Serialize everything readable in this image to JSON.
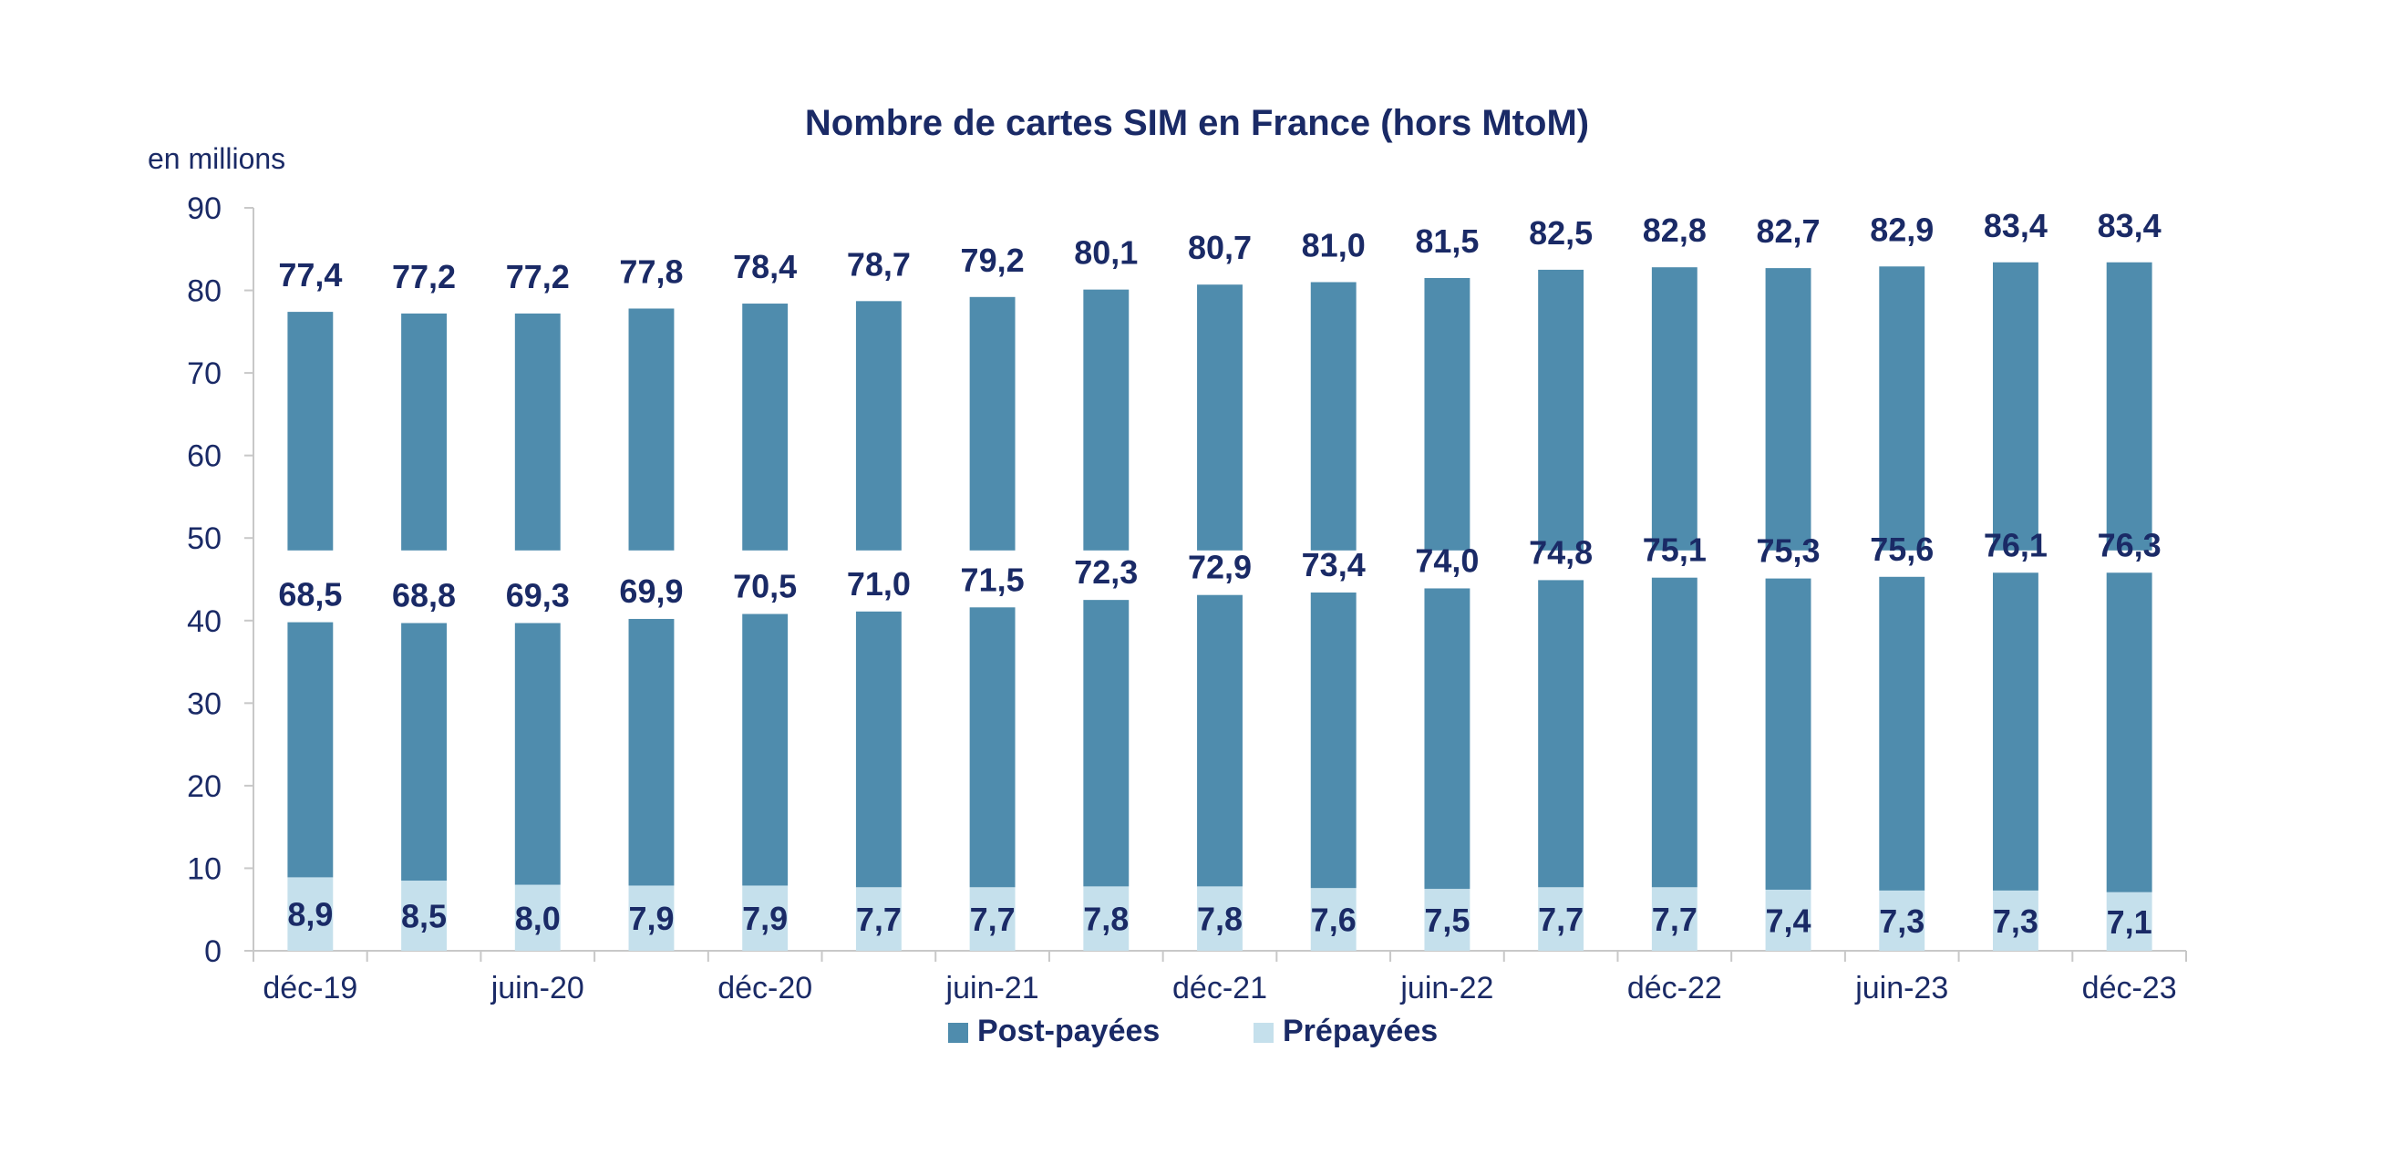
{
  "chart_data": {
    "type": "bar",
    "stacked": true,
    "title": "Nombre de cartes SIM en France (hors MtoM)",
    "unit_label": "en millions",
    "ylim": [
      0,
      90
    ],
    "yticks": [
      0,
      10,
      20,
      30,
      40,
      50,
      60,
      70,
      80,
      90
    ],
    "axis_break": true,
    "grid": false,
    "legend_position": "bottom",
    "colors": {
      "post": "#4f8cad",
      "pre": "#c5e0ec",
      "label": "#1a2a66",
      "axis": "#c8c8c8"
    },
    "x_tick_labels": [
      "déc-19",
      "",
      "juin-20",
      "",
      "déc-20",
      "",
      "juin-21",
      "",
      "déc-21",
      "",
      "juin-22",
      "",
      "déc-22",
      "",
      "juin-23",
      "",
      "déc-23"
    ],
    "series": [
      {
        "name": "Prépayées",
        "values": [
          8.9,
          8.5,
          8.0,
          7.9,
          7.9,
          7.7,
          7.7,
          7.8,
          7.8,
          7.6,
          7.5,
          7.7,
          7.7,
          7.4,
          7.3,
          7.3,
          7.1
        ],
        "labels": [
          "8,9",
          "8,5",
          "8,0",
          "7,9",
          "7,9",
          "7,7",
          "7,7",
          "7,8",
          "7,8",
          "7,6",
          "7,5",
          "7,7",
          "7,7",
          "7,4",
          "7,3",
          "7,3",
          "7,1"
        ]
      },
      {
        "name": "Post-payées",
        "values": [
          68.5,
          68.8,
          69.3,
          69.9,
          70.5,
          71.0,
          71.5,
          72.3,
          72.9,
          73.4,
          74.0,
          74.8,
          75.1,
          75.3,
          75.6,
          76.1,
          76.3
        ],
        "labels": [
          "68,5",
          "68,8",
          "69,3",
          "69,9",
          "70,5",
          "71,0",
          "71,5",
          "72,3",
          "72,9",
          "73,4",
          "74,0",
          "74,8",
          "75,1",
          "75,3",
          "75,6",
          "76,1",
          "76,3"
        ]
      }
    ],
    "totals": {
      "values": [
        77.4,
        77.2,
        77.2,
        77.8,
        78.4,
        78.7,
        79.2,
        80.1,
        80.7,
        81.0,
        81.5,
        82.5,
        82.8,
        82.7,
        82.9,
        83.4,
        83.4
      ],
      "labels": [
        "77,4",
        "77,2",
        "77,2",
        "77,8",
        "78,4",
        "78,7",
        "79,2",
        "80,1",
        "80,7",
        "81,0",
        "81,5",
        "82,5",
        "82,8",
        "82,7",
        "82,9",
        "83,4",
        "83,4"
      ]
    },
    "legend": [
      "Post-payées",
      "Prépayées"
    ]
  }
}
